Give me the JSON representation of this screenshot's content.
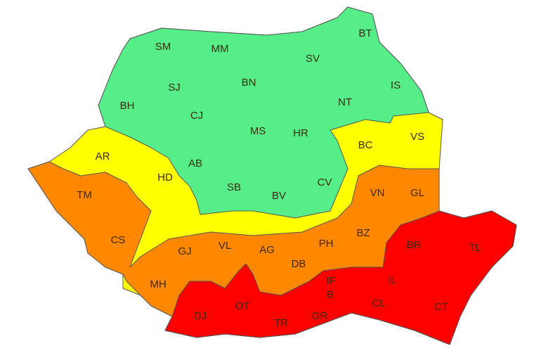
{
  "alert_colors": {
    "green": "#55EE88",
    "yellow": "#FFFF00",
    "orange": "#FF8800",
    "red": "#FF0000"
  },
  "counties": [
    {
      "code": "SM",
      "level": "green"
    },
    {
      "code": "MM",
      "level": "green"
    },
    {
      "code": "BT",
      "level": "green"
    },
    {
      "code": "SV",
      "level": "green"
    },
    {
      "code": "SJ",
      "level": "green"
    },
    {
      "code": "BN",
      "level": "green"
    },
    {
      "code": "IS",
      "level": "green"
    },
    {
      "code": "BH",
      "level": "green"
    },
    {
      "code": "CJ",
      "level": "green"
    },
    {
      "code": "NT",
      "level": "green"
    },
    {
      "code": "MS",
      "level": "green"
    },
    {
      "code": "HR",
      "level": "green"
    },
    {
      "code": "BC",
      "level": "yellow"
    },
    {
      "code": "VS",
      "level": "yellow"
    },
    {
      "code": "AR",
      "level": "yellow"
    },
    {
      "code": "AB",
      "level": "green"
    },
    {
      "code": "HD",
      "level": "yellow"
    },
    {
      "code": "CV",
      "level": "green"
    },
    {
      "code": "SB",
      "level": "green"
    },
    {
      "code": "BV",
      "level": "green"
    },
    {
      "code": "TM",
      "level": "orange"
    },
    {
      "code": "VN",
      "level": "orange"
    },
    {
      "code": "GL",
      "level": "orange"
    },
    {
      "code": "CS",
      "level": "orange"
    },
    {
      "code": "BZ",
      "level": "orange"
    },
    {
      "code": "PH",
      "level": "orange"
    },
    {
      "code": "BR",
      "level": "red"
    },
    {
      "code": "TL",
      "level": "red"
    },
    {
      "code": "GJ",
      "level": "orange"
    },
    {
      "code": "VL",
      "level": "orange"
    },
    {
      "code": "AG",
      "level": "orange"
    },
    {
      "code": "DB",
      "level": "orange"
    },
    {
      "code": "IF",
      "level": "red"
    },
    {
      "code": "IL",
      "level": "red"
    },
    {
      "code": "MH",
      "level": "orange"
    },
    {
      "code": "B",
      "level": "red"
    },
    {
      "code": "DJ",
      "level": "red"
    },
    {
      "code": "OT",
      "level": "red"
    },
    {
      "code": "CL",
      "level": "red"
    },
    {
      "code": "CT",
      "level": "red"
    },
    {
      "code": "TR",
      "level": "red"
    },
    {
      "code": "GR",
      "level": "red"
    }
  ]
}
